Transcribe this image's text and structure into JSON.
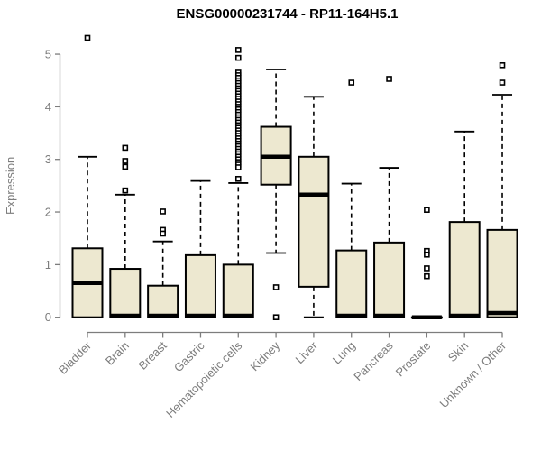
{
  "title": "ENSG00000231744 - RP11-164H5.1",
  "chart_data": {
    "type": "boxplot",
    "title": "ENSG00000231744 - RP11-164H5.1",
    "xlabel": "",
    "ylabel": "Expression",
    "ylim": [
      0,
      5.4
    ],
    "yticks": [
      0,
      1,
      2,
      3,
      4,
      5
    ],
    "grid": false,
    "legend": "none",
    "categories": [
      "Bladder",
      "Brain",
      "Breast",
      "Gastric",
      "Hematopoietic cells",
      "Kidney",
      "Liver",
      "Lung",
      "Pancreas",
      "Prostate",
      "Skin",
      "Unknown / Other"
    ],
    "series": [
      {
        "category": "Bladder",
        "whisker_low": 0,
        "q1": 0,
        "median": 0.65,
        "q3": 1.31,
        "whisker_high": 3.05,
        "outliers": [
          5.31
        ]
      },
      {
        "category": "Brain",
        "whisker_low": 0,
        "q1": 0,
        "median": 0.03,
        "q3": 0.92,
        "whisker_high": 2.33,
        "outliers": [
          3.22,
          2.97,
          2.86,
          2.41
        ]
      },
      {
        "category": "Breast",
        "whisker_low": 0,
        "q1": 0,
        "median": 0.03,
        "q3": 0.6,
        "whisker_high": 1.44,
        "outliers": [
          2.01,
          1.66,
          1.59
        ]
      },
      {
        "category": "Gastric",
        "whisker_low": 0,
        "q1": 0,
        "median": 0.03,
        "q3": 1.18,
        "whisker_high": 2.59,
        "outliers": []
      },
      {
        "category": "Hematopoietic cells",
        "whisker_low": 0,
        "q1": 0,
        "median": 0.03,
        "q3": 1.0,
        "whisker_high": 2.55,
        "outliers": [
          5.08,
          4.93,
          4.65,
          4.6,
          4.55,
          4.5,
          4.45,
          4.4,
          4.35,
          4.3,
          4.25,
          4.2,
          4.15,
          4.1,
          4.05,
          4.0,
          3.95,
          3.9,
          3.85,
          3.8,
          3.75,
          3.7,
          3.65,
          3.6,
          3.55,
          3.5,
          3.45,
          3.4,
          3.35,
          3.3,
          3.25,
          3.2,
          3.15,
          3.1,
          3.05,
          3.0,
          2.95,
          2.9,
          2.85,
          2.63
        ]
      },
      {
        "category": "Kidney",
        "whisker_low": 1.22,
        "q1": 2.52,
        "median": 3.05,
        "q3": 3.62,
        "whisker_high": 4.71,
        "outliers": [
          0.57,
          0.0
        ]
      },
      {
        "category": "Liver",
        "whisker_low": 0,
        "q1": 0.58,
        "median": 2.33,
        "q3": 3.05,
        "whisker_high": 4.19,
        "outliers": []
      },
      {
        "category": "Lung",
        "whisker_low": 0,
        "q1": 0,
        "median": 0.03,
        "q3": 1.27,
        "whisker_high": 2.54,
        "outliers": [
          4.46
        ]
      },
      {
        "category": "Pancreas",
        "whisker_low": 0,
        "q1": 0,
        "median": 0.03,
        "q3": 1.42,
        "whisker_high": 2.84,
        "outliers": [
          4.53
        ]
      },
      {
        "category": "Prostate",
        "whisker_low": 0,
        "q1": 0,
        "median": 0.0,
        "q3": 0,
        "whisker_high": 0,
        "outliers": [
          2.04,
          1.26,
          1.19,
          0.93,
          0.78
        ]
      },
      {
        "category": "Skin",
        "whisker_low": 0,
        "q1": 0,
        "median": 0.03,
        "q3": 1.81,
        "whisker_high": 3.53,
        "outliers": []
      },
      {
        "category": "Unknown / Other",
        "whisker_low": 0,
        "q1": 0,
        "median": 0.08,
        "q3": 1.66,
        "whisker_high": 4.23,
        "outliers": [
          4.79,
          4.46
        ]
      }
    ],
    "colors": {
      "box_fill": "#EDE8D0",
      "box_border": "#000000",
      "median": "#000000",
      "whisker": "#000000",
      "outlier_stroke": "#000000",
      "outlier_fill": "#ffffff",
      "axis": "#7d7d7d",
      "tick_label": "#7d7d7d",
      "title": "#000000",
      "background": "#ffffff"
    }
  }
}
